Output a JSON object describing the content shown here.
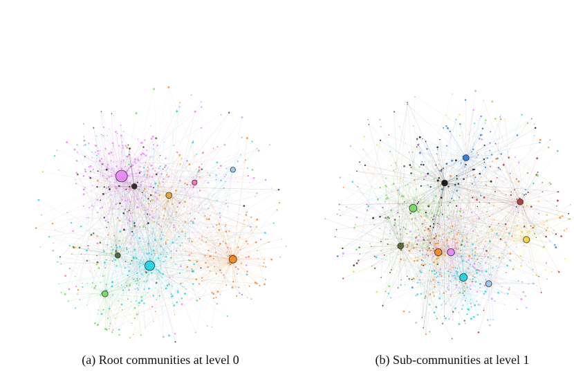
{
  "figure": {
    "panels": [
      {
        "id": "a",
        "caption": "(a) Root communities at level 0",
        "communities": [
          {
            "color": "#e58ef5",
            "weight": 0.3
          },
          {
            "color": "#2ed3e3",
            "weight": 0.22
          },
          {
            "color": "#f08c2e",
            "weight": 0.14
          },
          {
            "color": "#e2a83a",
            "weight": 0.08
          },
          {
            "color": "#7fd86a",
            "weight": 0.08
          },
          {
            "color": "#5a6b3a",
            "weight": 0.05
          },
          {
            "color": "#3a2a2a",
            "weight": 0.05
          },
          {
            "color": "#f07ab8",
            "weight": 0.04
          },
          {
            "color": "#9ec9ee",
            "weight": 0.04
          }
        ]
      },
      {
        "id": "b",
        "caption": "(b) Sub-communities at level 1",
        "communities": [
          {
            "color": "#7fd86a",
            "weight": 0.14
          },
          {
            "color": "#2ed3e3",
            "weight": 0.14
          },
          {
            "color": "#f08c2e",
            "weight": 0.12
          },
          {
            "color": "#e58ef5",
            "weight": 0.12
          },
          {
            "color": "#f5d54a",
            "weight": 0.09
          },
          {
            "color": "#3a7fd0",
            "weight": 0.08
          },
          {
            "color": "#1a1a1a",
            "weight": 0.08
          },
          {
            "color": "#b04040",
            "weight": 0.07
          },
          {
            "color": "#9ec9ee",
            "weight": 0.08
          },
          {
            "color": "#5a6b3a",
            "weight": 0.08
          }
        ]
      }
    ]
  }
}
